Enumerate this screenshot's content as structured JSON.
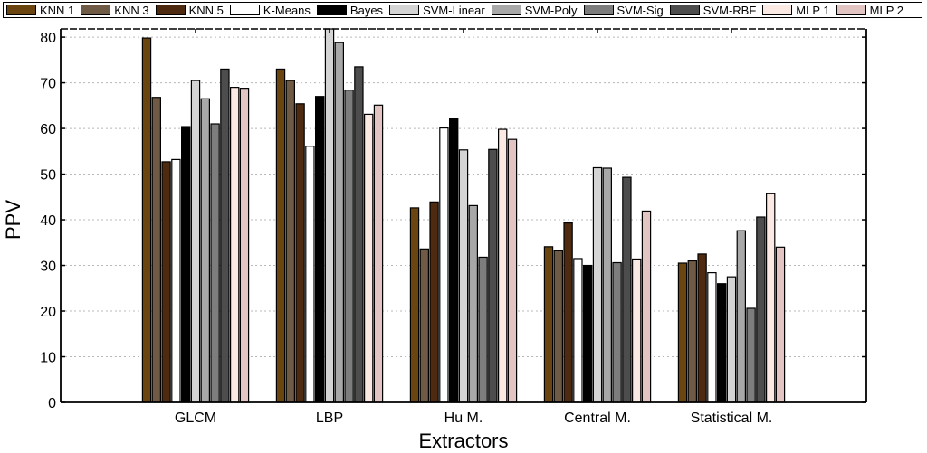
{
  "chart_data": {
    "type": "bar",
    "title": "",
    "xlabel": "Extractors",
    "ylabel": "PPV",
    "ylim": [
      0,
      81.8
    ],
    "yticks": [
      0,
      10,
      20,
      30,
      40,
      50,
      60,
      70,
      80
    ],
    "grid": true,
    "legend_position": "top",
    "categories": [
      "GLCM",
      "LBP",
      "Hu M.",
      "Central M.",
      "Statistical M."
    ],
    "series": [
      {
        "name": "KNN 1",
        "color": "#6b4510",
        "values": [
          79.8,
          73.0,
          42.6,
          34.1,
          30.5
        ]
      },
      {
        "name": "KNN 3",
        "color": "#6e5a45",
        "values": [
          66.8,
          70.5,
          33.6,
          33.2,
          31.0
        ]
      },
      {
        "name": "KNN 5",
        "color": "#4e2a10",
        "values": [
          52.7,
          65.4,
          43.9,
          39.3,
          32.5
        ]
      },
      {
        "name": "K-Means",
        "color": "#ffffff",
        "values": [
          53.2,
          56.1,
          60.1,
          31.5,
          28.4
        ]
      },
      {
        "name": "Bayes",
        "color": "#000000",
        "values": [
          60.4,
          67.0,
          62.1,
          30.0,
          26.0
        ]
      },
      {
        "name": "SVM-Linear",
        "color": "#d4d4d4",
        "values": [
          70.5,
          81.8,
          55.3,
          51.4,
          27.5
        ]
      },
      {
        "name": "SVM-Poly",
        "color": "#a8a8a8",
        "values": [
          66.5,
          78.8,
          43.1,
          51.3,
          37.6
        ]
      },
      {
        "name": "SVM-Sig",
        "color": "#7d7d7d",
        "values": [
          61.0,
          68.4,
          31.8,
          30.6,
          20.6
        ]
      },
      {
        "name": "SVM-RBF",
        "color": "#4d4d4d",
        "values": [
          73.0,
          73.5,
          55.4,
          49.3,
          40.6
        ]
      },
      {
        "name": "MLP 1",
        "color": "#fbe9e4",
        "values": [
          69.0,
          63.1,
          59.8,
          31.4,
          45.7
        ]
      },
      {
        "name": "MLP 2",
        "color": "#e2c4c2",
        "values": [
          68.8,
          65.1,
          57.6,
          41.9,
          34.0
        ]
      }
    ]
  }
}
